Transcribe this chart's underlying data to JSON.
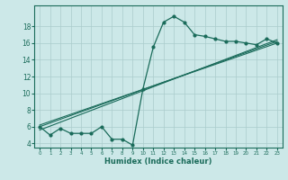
{
  "title": "",
  "xlabel": "Humidex (Indice chaleur)",
  "bg_color": "#cce8e8",
  "grid_color": "#aacccc",
  "line_color": "#1a6b5a",
  "x_values": [
    0,
    1,
    2,
    3,
    4,
    5,
    6,
    7,
    8,
    9,
    10,
    11,
    12,
    13,
    14,
    15,
    16,
    17,
    18,
    19,
    20,
    21,
    22,
    23
  ],
  "curve1": [
    6.0,
    5.0,
    5.8,
    5.2,
    5.2,
    5.2,
    6.0,
    4.5,
    4.5,
    3.8,
    10.5,
    15.5,
    18.5,
    19.2,
    18.5,
    17.0,
    16.8,
    16.5,
    16.2,
    16.2,
    16.0,
    15.8,
    16.5,
    16.0
  ],
  "line2_y": [
    6.0,
    16.2
  ],
  "line3_y": [
    6.2,
    16.0
  ],
  "line4_y": [
    5.6,
    16.4
  ],
  "ylim": [
    3.5,
    20.5
  ],
  "xlim": [
    -0.5,
    23.5
  ],
  "yticks": [
    4,
    6,
    8,
    10,
    12,
    14,
    16,
    18
  ],
  "xticks": [
    0,
    1,
    2,
    3,
    4,
    5,
    6,
    7,
    8,
    9,
    10,
    11,
    12,
    13,
    14,
    15,
    16,
    17,
    18,
    19,
    20,
    21,
    22,
    23
  ],
  "x_fontsize": 4.0,
  "y_fontsize": 5.5,
  "xlabel_fontsize": 6.0
}
